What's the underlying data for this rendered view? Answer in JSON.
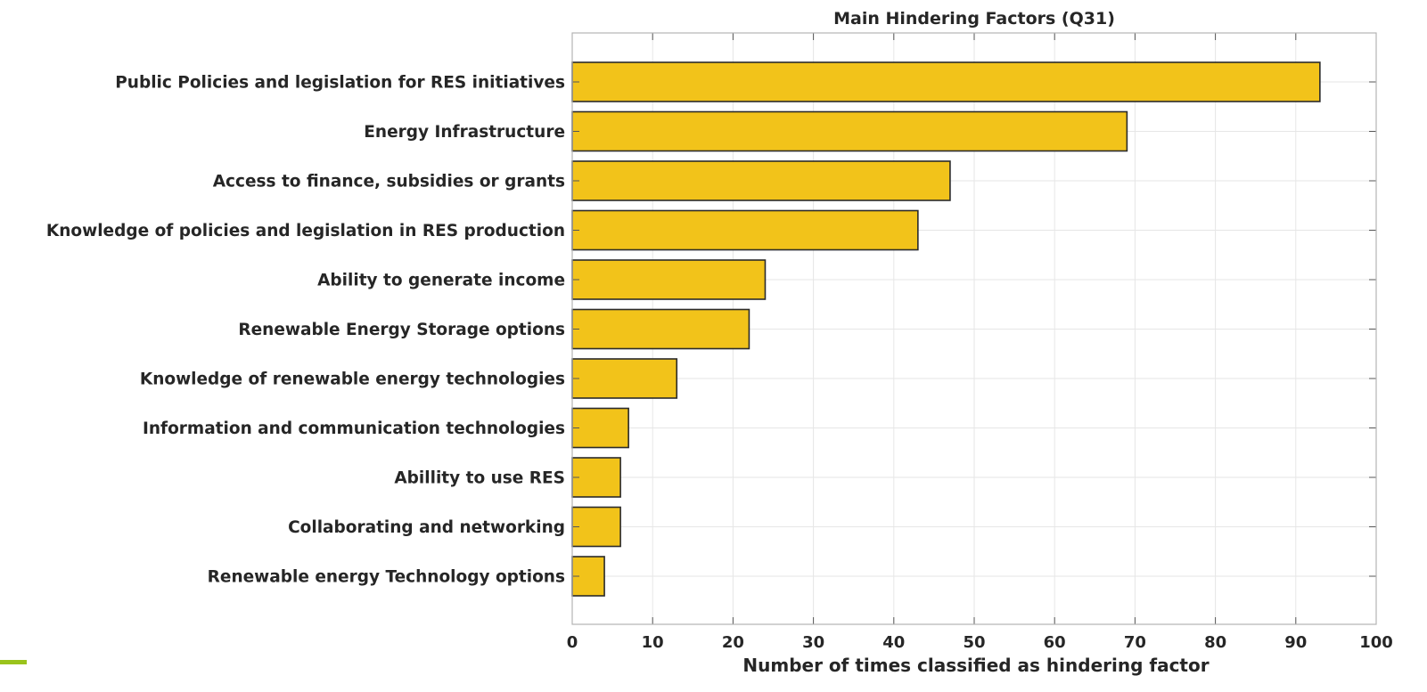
{
  "chart_data": {
    "type": "bar",
    "orientation": "horizontal",
    "title": "Main Hindering Factors (Q31)",
    "xlabel": "Number of times classified as hindering factor",
    "ylabel": "",
    "categories": [
      "Public Policies and legislation for RES initiatives",
      "Energy Infrastructure",
      "Access to finance, subsidies or grants",
      "Knowledge of policies and legislation in RES production",
      "Ability to generate income",
      "Renewable Energy Storage options",
      "Knowledge of renewable energy technologies",
      "Information and communication technologies",
      "Abillity to use RES",
      "Collaborating and networking",
      "Renewable energy Technology options"
    ],
    "values": [
      93,
      69,
      47,
      43,
      24,
      22,
      13,
      7,
      6,
      6,
      4
    ],
    "xlim": [
      0,
      100
    ],
    "xticks": [
      0,
      10,
      20,
      30,
      40,
      50,
      60,
      70,
      80,
      90,
      100
    ],
    "grid": true,
    "bar_color": "#f2c31a",
    "bar_edge_color": "#2b2b2b"
  }
}
